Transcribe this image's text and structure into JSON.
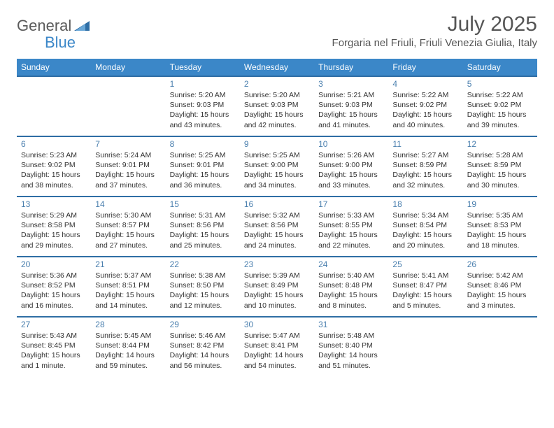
{
  "brand": {
    "part1": "General",
    "part2": "Blue"
  },
  "title": "July 2025",
  "location": "Forgaria nel Friuli, Friuli Venezia Giulia, Italy",
  "colors": {
    "header_bg": "#3b87c8",
    "week_border": "#2f6ea5",
    "daynum_color": "#4a7fae",
    "text_color": "#333333",
    "title_color": "#555555"
  },
  "day_names": [
    "Sunday",
    "Monday",
    "Tuesday",
    "Wednesday",
    "Thursday",
    "Friday",
    "Saturday"
  ],
  "weeks": [
    [
      {
        "n": "",
        "sr": "",
        "ss": "",
        "dl": ""
      },
      {
        "n": "",
        "sr": "",
        "ss": "",
        "dl": ""
      },
      {
        "n": "1",
        "sr": "Sunrise: 5:20 AM",
        "ss": "Sunset: 9:03 PM",
        "dl": "Daylight: 15 hours and 43 minutes."
      },
      {
        "n": "2",
        "sr": "Sunrise: 5:20 AM",
        "ss": "Sunset: 9:03 PM",
        "dl": "Daylight: 15 hours and 42 minutes."
      },
      {
        "n": "3",
        "sr": "Sunrise: 5:21 AM",
        "ss": "Sunset: 9:03 PM",
        "dl": "Daylight: 15 hours and 41 minutes."
      },
      {
        "n": "4",
        "sr": "Sunrise: 5:22 AM",
        "ss": "Sunset: 9:02 PM",
        "dl": "Daylight: 15 hours and 40 minutes."
      },
      {
        "n": "5",
        "sr": "Sunrise: 5:22 AM",
        "ss": "Sunset: 9:02 PM",
        "dl": "Daylight: 15 hours and 39 minutes."
      }
    ],
    [
      {
        "n": "6",
        "sr": "Sunrise: 5:23 AM",
        "ss": "Sunset: 9:02 PM",
        "dl": "Daylight: 15 hours and 38 minutes."
      },
      {
        "n": "7",
        "sr": "Sunrise: 5:24 AM",
        "ss": "Sunset: 9:01 PM",
        "dl": "Daylight: 15 hours and 37 minutes."
      },
      {
        "n": "8",
        "sr": "Sunrise: 5:25 AM",
        "ss": "Sunset: 9:01 PM",
        "dl": "Daylight: 15 hours and 36 minutes."
      },
      {
        "n": "9",
        "sr": "Sunrise: 5:25 AM",
        "ss": "Sunset: 9:00 PM",
        "dl": "Daylight: 15 hours and 34 minutes."
      },
      {
        "n": "10",
        "sr": "Sunrise: 5:26 AM",
        "ss": "Sunset: 9:00 PM",
        "dl": "Daylight: 15 hours and 33 minutes."
      },
      {
        "n": "11",
        "sr": "Sunrise: 5:27 AM",
        "ss": "Sunset: 8:59 PM",
        "dl": "Daylight: 15 hours and 32 minutes."
      },
      {
        "n": "12",
        "sr": "Sunrise: 5:28 AM",
        "ss": "Sunset: 8:59 PM",
        "dl": "Daylight: 15 hours and 30 minutes."
      }
    ],
    [
      {
        "n": "13",
        "sr": "Sunrise: 5:29 AM",
        "ss": "Sunset: 8:58 PM",
        "dl": "Daylight: 15 hours and 29 minutes."
      },
      {
        "n": "14",
        "sr": "Sunrise: 5:30 AM",
        "ss": "Sunset: 8:57 PM",
        "dl": "Daylight: 15 hours and 27 minutes."
      },
      {
        "n": "15",
        "sr": "Sunrise: 5:31 AM",
        "ss": "Sunset: 8:56 PM",
        "dl": "Daylight: 15 hours and 25 minutes."
      },
      {
        "n": "16",
        "sr": "Sunrise: 5:32 AM",
        "ss": "Sunset: 8:56 PM",
        "dl": "Daylight: 15 hours and 24 minutes."
      },
      {
        "n": "17",
        "sr": "Sunrise: 5:33 AM",
        "ss": "Sunset: 8:55 PM",
        "dl": "Daylight: 15 hours and 22 minutes."
      },
      {
        "n": "18",
        "sr": "Sunrise: 5:34 AM",
        "ss": "Sunset: 8:54 PM",
        "dl": "Daylight: 15 hours and 20 minutes."
      },
      {
        "n": "19",
        "sr": "Sunrise: 5:35 AM",
        "ss": "Sunset: 8:53 PM",
        "dl": "Daylight: 15 hours and 18 minutes."
      }
    ],
    [
      {
        "n": "20",
        "sr": "Sunrise: 5:36 AM",
        "ss": "Sunset: 8:52 PM",
        "dl": "Daylight: 15 hours and 16 minutes."
      },
      {
        "n": "21",
        "sr": "Sunrise: 5:37 AM",
        "ss": "Sunset: 8:51 PM",
        "dl": "Daylight: 15 hours and 14 minutes."
      },
      {
        "n": "22",
        "sr": "Sunrise: 5:38 AM",
        "ss": "Sunset: 8:50 PM",
        "dl": "Daylight: 15 hours and 12 minutes."
      },
      {
        "n": "23",
        "sr": "Sunrise: 5:39 AM",
        "ss": "Sunset: 8:49 PM",
        "dl": "Daylight: 15 hours and 10 minutes."
      },
      {
        "n": "24",
        "sr": "Sunrise: 5:40 AM",
        "ss": "Sunset: 8:48 PM",
        "dl": "Daylight: 15 hours and 8 minutes."
      },
      {
        "n": "25",
        "sr": "Sunrise: 5:41 AM",
        "ss": "Sunset: 8:47 PM",
        "dl": "Daylight: 15 hours and 5 minutes."
      },
      {
        "n": "26",
        "sr": "Sunrise: 5:42 AM",
        "ss": "Sunset: 8:46 PM",
        "dl": "Daylight: 15 hours and 3 minutes."
      }
    ],
    [
      {
        "n": "27",
        "sr": "Sunrise: 5:43 AM",
        "ss": "Sunset: 8:45 PM",
        "dl": "Daylight: 15 hours and 1 minute."
      },
      {
        "n": "28",
        "sr": "Sunrise: 5:45 AM",
        "ss": "Sunset: 8:44 PM",
        "dl": "Daylight: 14 hours and 59 minutes."
      },
      {
        "n": "29",
        "sr": "Sunrise: 5:46 AM",
        "ss": "Sunset: 8:42 PM",
        "dl": "Daylight: 14 hours and 56 minutes."
      },
      {
        "n": "30",
        "sr": "Sunrise: 5:47 AM",
        "ss": "Sunset: 8:41 PM",
        "dl": "Daylight: 14 hours and 54 minutes."
      },
      {
        "n": "31",
        "sr": "Sunrise: 5:48 AM",
        "ss": "Sunset: 8:40 PM",
        "dl": "Daylight: 14 hours and 51 minutes."
      },
      {
        "n": "",
        "sr": "",
        "ss": "",
        "dl": ""
      },
      {
        "n": "",
        "sr": "",
        "ss": "",
        "dl": ""
      }
    ]
  ]
}
